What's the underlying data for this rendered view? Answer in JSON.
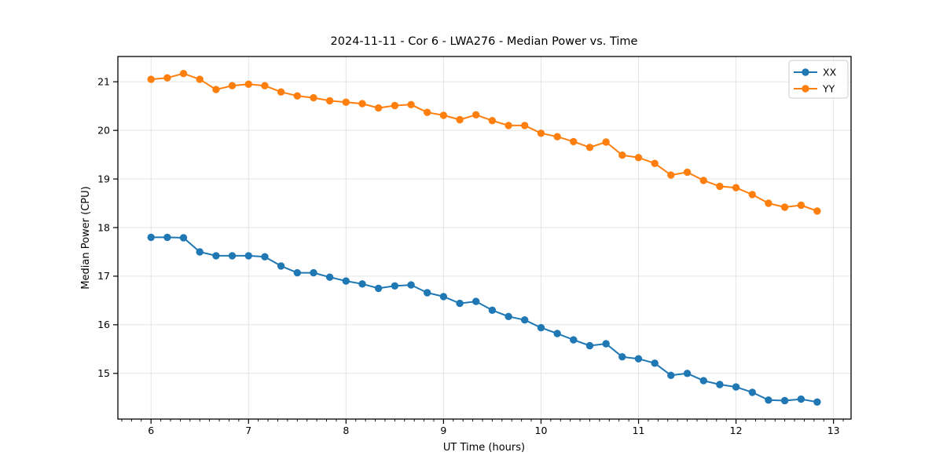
{
  "chart_data": {
    "type": "line",
    "title": "2024-11-11 - Cor 6 - LWA276 - Median Power vs. Time",
    "xlabel": "UT Time (hours)",
    "ylabel": "Median Power (CPU)",
    "xlim": [
      5.66,
      13.18
    ],
    "ylim": [
      14.06,
      21.52
    ],
    "xticks": [
      6,
      7,
      8,
      9,
      10,
      11,
      12,
      13
    ],
    "yticks": [
      15,
      16,
      17,
      18,
      19,
      20,
      21
    ],
    "minor_xtick_step": 0.1,
    "grid": true,
    "legend_position": "upper-right",
    "x": [
      6.0,
      6.167,
      6.333,
      6.5,
      6.667,
      6.833,
      7.0,
      7.167,
      7.333,
      7.5,
      7.667,
      7.833,
      8.0,
      8.167,
      8.333,
      8.5,
      8.667,
      8.833,
      9.0,
      9.167,
      9.333,
      9.5,
      9.667,
      9.833,
      10.0,
      10.167,
      10.333,
      10.5,
      10.667,
      10.833,
      11.0,
      11.167,
      11.333,
      11.5,
      11.667,
      11.833,
      12.0,
      12.167,
      12.333,
      12.5,
      12.667,
      12.833
    ],
    "series": [
      {
        "name": "XX",
        "color": "#1f77b4",
        "marker": "circle",
        "values": [
          17.8,
          17.8,
          17.79,
          17.5,
          17.42,
          17.42,
          17.42,
          17.4,
          17.21,
          17.07,
          17.07,
          16.98,
          16.9,
          16.84,
          16.75,
          16.8,
          16.82,
          16.66,
          16.58,
          16.44,
          16.48,
          16.3,
          16.17,
          16.1,
          15.94,
          15.82,
          15.69,
          15.57,
          15.61,
          15.34,
          15.3,
          15.21,
          14.96,
          15.0,
          14.85,
          14.77,
          14.72,
          14.61,
          14.45,
          14.44,
          14.47,
          14.41
        ]
      },
      {
        "name": "YY",
        "color": "#ff7f0e",
        "marker": "circle",
        "values": [
          21.05,
          21.08,
          21.17,
          21.05,
          20.84,
          20.92,
          20.95,
          20.92,
          20.79,
          20.71,
          20.67,
          20.61,
          20.58,
          20.55,
          20.46,
          20.51,
          20.53,
          20.37,
          20.31,
          20.22,
          20.32,
          20.2,
          20.1,
          20.1,
          19.94,
          19.87,
          19.77,
          19.65,
          19.76,
          19.49,
          19.44,
          19.32,
          19.08,
          19.14,
          18.97,
          18.85,
          18.82,
          18.68,
          18.5,
          18.42,
          18.46,
          18.34
        ]
      }
    ]
  },
  "colors": {
    "grid": "#e1e1e1",
    "spine": "#000000",
    "tick": "#000000",
    "legend_border": "#cccccc",
    "legend_bg": "#ffffff"
  }
}
